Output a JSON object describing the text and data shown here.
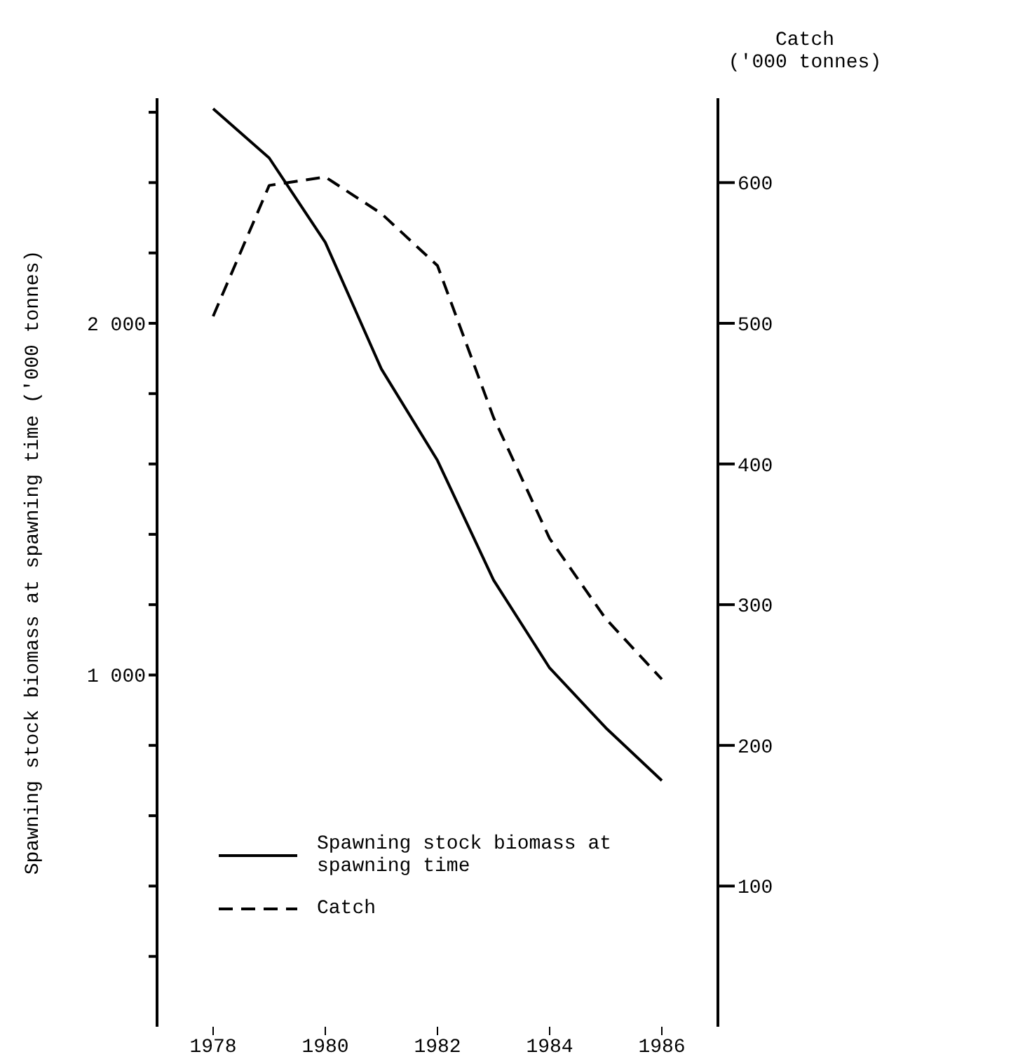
{
  "chart_data": {
    "type": "line",
    "ylabel": "Spawning stock biomass at spawning time ('000 tonnes)",
    "y2label": "Catch\n('000 tonnes)",
    "x": [
      1978,
      1979,
      1980,
      1981,
      1982,
      1983,
      1984,
      1985,
      1986
    ],
    "xlim": [
      1977,
      1987
    ],
    "xticks": [
      1978,
      1980,
      1982,
      1984,
      1986
    ],
    "ylim": [
      0,
      2640
    ],
    "yticks": [
      {
        "value": 200,
        "label": null
      },
      {
        "value": 400,
        "label": null
      },
      {
        "value": 600,
        "label": null
      },
      {
        "value": 800,
        "label": null
      },
      {
        "value": 1000,
        "label": "1 000"
      },
      {
        "value": 1200,
        "label": null
      },
      {
        "value": 1400,
        "label": null
      },
      {
        "value": 1600,
        "label": null
      },
      {
        "value": 1800,
        "label": null
      },
      {
        "value": 2000,
        "label": "2 000"
      },
      {
        "value": 2200,
        "label": null
      },
      {
        "value": 2400,
        "label": null
      },
      {
        "value": 2600,
        "label": null
      }
    ],
    "y2lim": [
      0,
      660
    ],
    "y2ticks": [
      100,
      200,
      300,
      400,
      500,
      600
    ],
    "legend": "bottom left",
    "marker": "none",
    "series": [
      {
        "name": "Spawning stock biomass at spawning time",
        "color": "#000000",
        "line_style": "solid",
        "values": [
          2610,
          2470,
          2230,
          1870,
          1610,
          1270,
          1020,
          850,
          700
        ]
      },
      {
        "name": "Catch",
        "color": "#000000",
        "line_style": "dashed",
        "axis": "y2",
        "values": [
          505,
          598,
          604,
          578,
          541,
          433,
          347,
          290,
          247
        ]
      }
    ]
  }
}
